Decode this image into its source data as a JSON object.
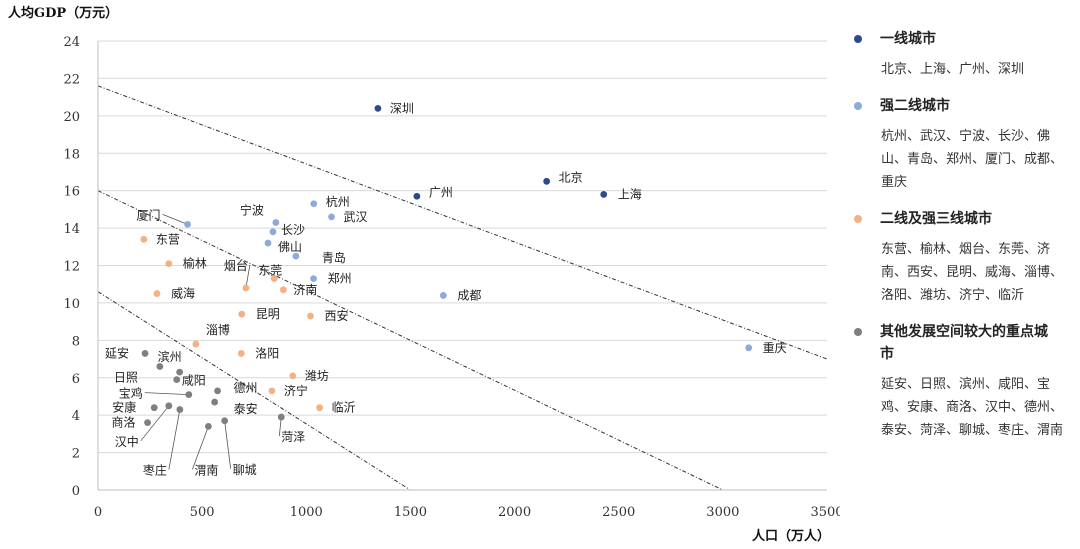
{
  "chart_data": {
    "type": "scatter",
    "xlabel": "人口（万人）",
    "ylabel": "人均GDP（万元）",
    "xlim": [
      0,
      3500
    ],
    "ylim": [
      0,
      24
    ],
    "xticks": [
      0,
      500,
      1000,
      1500,
      2000,
      2500,
      3000,
      3500
    ],
    "yticks": [
      0,
      2,
      4,
      6,
      8,
      10,
      12,
      14,
      16,
      18,
      20,
      22,
      24
    ],
    "grid": "horizontal",
    "legend_position": "right",
    "reference_lines": [
      {
        "x1": 0,
        "y1": 21.6,
        "x2": 3500,
        "y2": 7.0
      },
      {
        "x1": 0,
        "y1": 16.0,
        "x2": 3000,
        "y2": 0
      },
      {
        "x1": 0,
        "y1": 10.6,
        "x2": 1500,
        "y2": 0
      }
    ],
    "series": [
      {
        "name": "一线城市",
        "color": "#2e4a8b",
        "members_text": "北京、上海、广州、深圳",
        "points": [
          {
            "label": "深圳",
            "x": 1344,
            "y": 20.4
          },
          {
            "label": "北京",
            "x": 2154,
            "y": 16.5
          },
          {
            "label": "广州",
            "x": 1531,
            "y": 15.7
          },
          {
            "label": "上海",
            "x": 2428,
            "y": 15.8
          }
        ]
      },
      {
        "name": "强二线城市",
        "color": "#8eaadb",
        "members_text": "杭州、武汉、宁波、长沙、佛山、青岛、郑州、厦门、成都、重庆",
        "points": [
          {
            "label": "杭州",
            "x": 1036,
            "y": 15.3
          },
          {
            "label": "武汉",
            "x": 1121,
            "y": 14.6
          },
          {
            "label": "宁波",
            "x": 854,
            "y": 14.3
          },
          {
            "label": "长沙",
            "x": 840,
            "y": 13.8
          },
          {
            "label": "佛山",
            "x": 816,
            "y": 13.2
          },
          {
            "label": "青岛",
            "x": 950,
            "y": 12.5
          },
          {
            "label": "郑州",
            "x": 1035,
            "y": 11.3
          },
          {
            "label": "厦门",
            "x": 430,
            "y": 14.2
          },
          {
            "label": "成都",
            "x": 1658,
            "y": 10.4
          },
          {
            "label": "重庆",
            "x": 3124,
            "y": 7.6
          }
        ]
      },
      {
        "name": "二线及强三线城市",
        "color": "#f4b183",
        "members_text": "东营、榆林、烟台、东莞、济南、西安、昆明、威海、淄博、洛阳、潍坊、济宁、临沂",
        "points": [
          {
            "label": "东营",
            "x": 220,
            "y": 13.4
          },
          {
            "label": "榆林",
            "x": 340,
            "y": 12.1
          },
          {
            "label": "烟台",
            "x": 710,
            "y": 10.8
          },
          {
            "label": "东莞",
            "x": 846,
            "y": 11.3
          },
          {
            "label": "济南",
            "x": 890,
            "y": 10.7
          },
          {
            "label": "西安",
            "x": 1020,
            "y": 9.3
          },
          {
            "label": "昆明",
            "x": 690,
            "y": 9.4
          },
          {
            "label": "威海",
            "x": 283,
            "y": 10.5
          },
          {
            "label": "淄博",
            "x": 470,
            "y": 7.8
          },
          {
            "label": "洛阳",
            "x": 688,
            "y": 7.3
          },
          {
            "label": "潍坊",
            "x": 935,
            "y": 6.1
          },
          {
            "label": "济宁",
            "x": 835,
            "y": 5.3
          },
          {
            "label": "临沂",
            "x": 1064,
            "y": 4.4
          }
        ]
      },
      {
        "name": "其他发展空间较大的重点城市",
        "color": "#7f7f7f",
        "members_text": "延安、日照、滨州、咸阳、宝鸡、安康、商洛、汉中、德州、泰安、菏泽、聊城、枣庄、渭南",
        "points": [
          {
            "label": "延安",
            "x": 226,
            "y": 7.3
          },
          {
            "label": "日照",
            "x": 297,
            "y": 6.6
          },
          {
            "label": "滨州",
            "x": 392,
            "y": 6.3
          },
          {
            "label": "咸阳",
            "x": 378,
            "y": 5.9
          },
          {
            "label": "宝鸡",
            "x": 436,
            "y": 5.1
          },
          {
            "label": "安康",
            "x": 270,
            "y": 4.4
          },
          {
            "label": "商洛",
            "x": 238,
            "y": 3.6
          },
          {
            "label": "汉中",
            "x": 340,
            "y": 4.5
          },
          {
            "label": "德州",
            "x": 574,
            "y": 5.3
          },
          {
            "label": "泰安",
            "x": 560,
            "y": 4.7
          },
          {
            "label": "菏泽",
            "x": 880,
            "y": 3.9
          },
          {
            "label": "聊城",
            "x": 608,
            "y": 3.7
          },
          {
            "label": "枣庄",
            "x": 393,
            "y": 4.3
          },
          {
            "label": "渭南",
            "x": 530,
            "y": 3.4
          }
        ]
      }
    ]
  }
}
